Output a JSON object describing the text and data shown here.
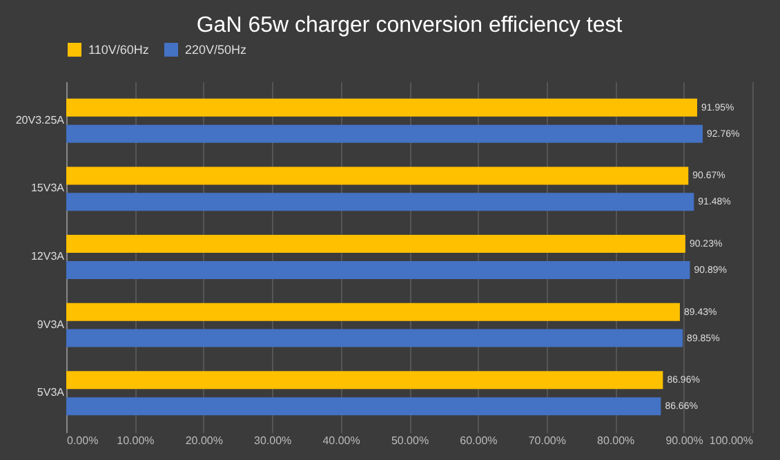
{
  "chart_data": {
    "type": "bar",
    "orientation": "horizontal",
    "title": "GaN 65w charger conversion efficiency test",
    "categories": [
      "20V3.25A",
      "15V3A",
      "12V3A",
      "9V3A",
      "5V3A"
    ],
    "series": [
      {
        "name": "110V/60Hz",
        "color": "#ffc000",
        "values": [
          91.95,
          90.67,
          90.23,
          89.43,
          86.96
        ],
        "value_labels": [
          "91.95%",
          "90.67%",
          "90.23%",
          "89.43%",
          "86.96%"
        ]
      },
      {
        "name": "220V/50Hz",
        "color": "#4472c4",
        "values": [
          92.76,
          91.48,
          90.89,
          89.85,
          86.66
        ],
        "value_labels": [
          "92.76%",
          "91.48%",
          "90.89%",
          "89.85%",
          "86.66%"
        ]
      }
    ],
    "xlim": [
      0,
      100
    ],
    "xticks": [
      {
        "value": 0,
        "label": "0.00%"
      },
      {
        "value": 10,
        "label": "10.00%"
      },
      {
        "value": 20,
        "label": "20.00%"
      },
      {
        "value": 30,
        "label": "30.00%"
      },
      {
        "value": 40,
        "label": "40.00%"
      },
      {
        "value": 50,
        "label": "50.00%"
      },
      {
        "value": 60,
        "label": "60.00%"
      },
      {
        "value": 70,
        "label": "70.00%"
      },
      {
        "value": 80,
        "label": "80.00%"
      },
      {
        "value": 90,
        "label": "90.00%"
      },
      {
        "value": 100,
        "label": "100.00%"
      }
    ],
    "grid": "x",
    "legend": "top"
  }
}
